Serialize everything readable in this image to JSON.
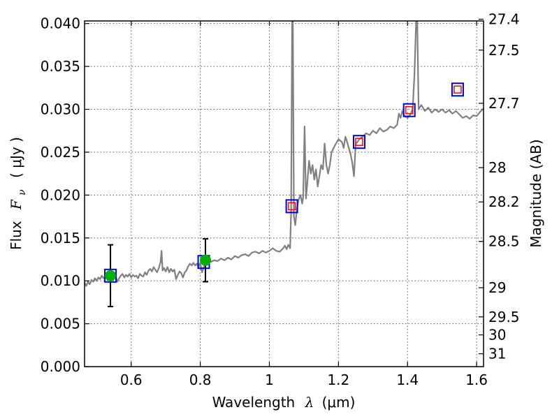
{
  "chart_data": {
    "type": "line",
    "title": "",
    "xlabel": "Wavelength",
    "xlabel_symbol": "λ",
    "xlabel_unit": "(μm)",
    "ylabel_left": "Flux",
    "ylabel_left_symbol": "F",
    "ylabel_left_symbol_sub": "ν",
    "ylabel_left_unit": "( μJy )",
    "ylabel_right": "Magnitude (AB)",
    "xlim": [
      0.465,
      1.62
    ],
    "ylim": [
      0.0,
      0.0403
    ],
    "grid": true,
    "x_ticks": [
      0.6,
      0.8,
      1.0,
      1.2,
      1.4,
      1.6
    ],
    "x_tick_labels": [
      "0.6",
      "0.8",
      "1",
      "1.2",
      "1.4",
      "1.6"
    ],
    "y_ticks": [
      0.0,
      0.005,
      0.01,
      0.015,
      0.02,
      0.025,
      0.03,
      0.035,
      0.04
    ],
    "y_tick_labels": [
      "0.000",
      "0.005",
      "0.010",
      "0.015",
      "0.020",
      "0.025",
      "0.030",
      "0.035",
      "0.040"
    ],
    "right_ticks": [
      {
        "flux": 0.0405,
        "label": "27.4"
      },
      {
        "flux": 0.0369,
        "label": "27.5"
      },
      {
        "flux": 0.0307,
        "label": "27.7"
      },
      {
        "flux": 0.0232,
        "label": "28"
      },
      {
        "flux": 0.0192,
        "label": "28.2"
      },
      {
        "flux": 0.0146,
        "label": "28.5"
      },
      {
        "flux": 0.0092,
        "label": "29"
      },
      {
        "flux": 0.0058,
        "label": "29.5"
      },
      {
        "flux": 0.0037,
        "label": "30"
      },
      {
        "flux": 0.0015,
        "label": "31"
      }
    ],
    "colors": {
      "spectrum": "#808080",
      "measured_point": "#00b000",
      "box_outer": "#0000dd",
      "box_inner": "#ee1111",
      "errorbar": "#000000",
      "grid": "#555555"
    },
    "series": [
      {
        "kind": "spectrum",
        "points": [
          [
            0.465,
            0.0098
          ],
          [
            0.47,
            0.0094
          ],
          [
            0.475,
            0.0099
          ],
          [
            0.48,
            0.0096
          ],
          [
            0.485,
            0.0101
          ],
          [
            0.49,
            0.0099
          ],
          [
            0.495,
            0.0103
          ],
          [
            0.5,
            0.01
          ],
          [
            0.505,
            0.0104
          ],
          [
            0.51,
            0.0102
          ],
          [
            0.515,
            0.0106
          ],
          [
            0.52,
            0.0103
          ],
          [
            0.525,
            0.0105
          ],
          [
            0.53,
            0.0107
          ],
          [
            0.535,
            0.0104
          ],
          [
            0.54,
            0.0102
          ],
          [
            0.545,
            0.0106
          ],
          [
            0.55,
            0.0108
          ],
          [
            0.555,
            0.0105
          ],
          [
            0.56,
            0.0099
          ],
          [
            0.565,
            0.0103
          ],
          [
            0.57,
            0.0106
          ],
          [
            0.575,
            0.0108
          ],
          [
            0.58,
            0.0104
          ],
          [
            0.585,
            0.0107
          ],
          [
            0.59,
            0.0105
          ],
          [
            0.595,
            0.0108
          ],
          [
            0.6,
            0.0104
          ],
          [
            0.605,
            0.0107
          ],
          [
            0.61,
            0.0105
          ],
          [
            0.615,
            0.0106
          ],
          [
            0.62,
            0.0103
          ],
          [
            0.625,
            0.0108
          ],
          [
            0.63,
            0.0106
          ],
          [
            0.635,
            0.0105
          ],
          [
            0.64,
            0.011
          ],
          [
            0.645,
            0.0107
          ],
          [
            0.65,
            0.0112
          ],
          [
            0.655,
            0.0114
          ],
          [
            0.66,
            0.0111
          ],
          [
            0.665,
            0.0116
          ],
          [
            0.67,
            0.0113
          ],
          [
            0.675,
            0.011
          ],
          [
            0.68,
            0.0115
          ],
          [
            0.685,
            0.0122
          ],
          [
            0.688,
            0.0135
          ],
          [
            0.691,
            0.0112
          ],
          [
            0.695,
            0.0115
          ],
          [
            0.7,
            0.0111
          ],
          [
            0.705,
            0.0116
          ],
          [
            0.71,
            0.011
          ],
          [
            0.715,
            0.0114
          ],
          [
            0.72,
            0.0111
          ],
          [
            0.725,
            0.0113
          ],
          [
            0.73,
            0.0102
          ],
          [
            0.735,
            0.0107
          ],
          [
            0.74,
            0.0111
          ],
          [
            0.745,
            0.0109
          ],
          [
            0.75,
            0.0104
          ],
          [
            0.755,
            0.011
          ],
          [
            0.76,
            0.0112
          ],
          [
            0.765,
            0.0117
          ],
          [
            0.77,
            0.012
          ],
          [
            0.775,
            0.0118
          ],
          [
            0.78,
            0.0121
          ],
          [
            0.785,
            0.0118
          ],
          [
            0.79,
            0.012
          ],
          [
            0.795,
            0.0116
          ],
          [
            0.8,
            0.0121
          ],
          [
            0.805,
            0.011
          ],
          [
            0.81,
            0.0116
          ],
          [
            0.815,
            0.012
          ],
          [
            0.82,
            0.0123
          ],
          [
            0.83,
            0.0122
          ],
          [
            0.84,
            0.0124
          ],
          [
            0.85,
            0.0123
          ],
          [
            0.86,
            0.0126
          ],
          [
            0.87,
            0.0124
          ],
          [
            0.88,
            0.0127
          ],
          [
            0.89,
            0.0125
          ],
          [
            0.9,
            0.0129
          ],
          [
            0.91,
            0.0127
          ],
          [
            0.92,
            0.013
          ],
          [
            0.93,
            0.0131
          ],
          [
            0.94,
            0.0129
          ],
          [
            0.95,
            0.0133
          ],
          [
            0.96,
            0.0134
          ],
          [
            0.97,
            0.0132
          ],
          [
            0.98,
            0.0135
          ],
          [
            0.99,
            0.0133
          ],
          [
            1.0,
            0.0135
          ],
          [
            1.01,
            0.0138
          ],
          [
            1.02,
            0.0135
          ],
          [
            1.03,
            0.0134
          ],
          [
            1.04,
            0.0138
          ],
          [
            1.045,
            0.0141
          ],
          [
            1.05,
            0.0137
          ],
          [
            1.055,
            0.0142
          ],
          [
            1.06,
            0.0138
          ],
          [
            1.063,
            0.018
          ],
          [
            1.066,
            0.0405
          ],
          [
            1.068,
            0.0405
          ],
          [
            1.071,
            0.0175
          ],
          [
            1.075,
            0.0165
          ],
          [
            1.08,
            0.0185
          ],
          [
            1.085,
            0.0195
          ],
          [
            1.09,
            0.02
          ],
          [
            1.095,
            0.019
          ],
          [
            1.098,
            0.0198
          ],
          [
            1.102,
            0.028
          ],
          [
            1.106,
            0.0196
          ],
          [
            1.11,
            0.0215
          ],
          [
            1.115,
            0.024
          ],
          [
            1.12,
            0.0225
          ],
          [
            1.125,
            0.0235
          ],
          [
            1.13,
            0.0218
          ],
          [
            1.135,
            0.023
          ],
          [
            1.14,
            0.021
          ],
          [
            1.15,
            0.0235
          ],
          [
            1.155,
            0.023
          ],
          [
            1.16,
            0.026
          ],
          [
            1.165,
            0.0235
          ],
          [
            1.17,
            0.0225
          ],
          [
            1.175,
            0.0235
          ],
          [
            1.18,
            0.025
          ],
          [
            1.19,
            0.0258
          ],
          [
            1.2,
            0.0265
          ],
          [
            1.21,
            0.0262
          ],
          [
            1.215,
            0.0255
          ],
          [
            1.22,
            0.0268
          ],
          [
            1.225,
            0.0262
          ],
          [
            1.23,
            0.0255
          ],
          [
            1.235,
            0.0248
          ],
          [
            1.24,
            0.0238
          ],
          [
            1.245,
            0.0222
          ],
          [
            1.25,
            0.026
          ],
          [
            1.255,
            0.0262
          ],
          [
            1.26,
            0.0265
          ],
          [
            1.27,
            0.0268
          ],
          [
            1.28,
            0.0272
          ],
          [
            1.29,
            0.027
          ],
          [
            1.3,
            0.0275
          ],
          [
            1.31,
            0.0272
          ],
          [
            1.32,
            0.0278
          ],
          [
            1.33,
            0.0274
          ],
          [
            1.34,
            0.0276
          ],
          [
            1.35,
            0.028
          ],
          [
            1.36,
            0.0278
          ],
          [
            1.37,
            0.0282
          ],
          [
            1.375,
            0.0295
          ],
          [
            1.38,
            0.029
          ],
          [
            1.385,
            0.0298
          ],
          [
            1.39,
            0.0293
          ],
          [
            1.4,
            0.029
          ],
          [
            1.41,
            0.0295
          ],
          [
            1.415,
            0.0302
          ],
          [
            1.42,
            0.034
          ],
          [
            1.425,
            0.0405
          ],
          [
            1.428,
            0.0405
          ],
          [
            1.432,
            0.03
          ],
          [
            1.44,
            0.0305
          ],
          [
            1.45,
            0.0298
          ],
          [
            1.46,
            0.0302
          ],
          [
            1.47,
            0.0296
          ],
          [
            1.48,
            0.03
          ],
          [
            1.49,
            0.0297
          ],
          [
            1.5,
            0.03
          ],
          [
            1.51,
            0.0296
          ],
          [
            1.52,
            0.0299
          ],
          [
            1.53,
            0.0295
          ],
          [
            1.54,
            0.0298
          ],
          [
            1.55,
            0.0294
          ],
          [
            1.56,
            0.029
          ],
          [
            1.57,
            0.0292
          ],
          [
            1.58,
            0.0289
          ],
          [
            1.59,
            0.0293
          ],
          [
            1.6,
            0.0292
          ],
          [
            1.61,
            0.0297
          ],
          [
            1.62,
            0.0301
          ]
        ]
      },
      {
        "kind": "measured",
        "points": [
          {
            "x": 0.54,
            "y": 0.0106,
            "yerr_low": 0.007,
            "yerr_high": 0.0142
          },
          {
            "x": 0.815,
            "y": 0.0124,
            "yerr_low": 0.0099,
            "yerr_high": 0.0149
          }
        ]
      },
      {
        "kind": "box",
        "points": [
          {
            "x": 0.54,
            "y": 0.0106
          },
          {
            "x": 0.81,
            "y": 0.0122
          },
          {
            "x": 1.065,
            "y": 0.0187
          },
          {
            "x": 1.26,
            "y": 0.0262
          },
          {
            "x": 1.405,
            "y": 0.0299
          },
          {
            "x": 1.545,
            "y": 0.0323
          }
        ]
      },
      {
        "kind": "box_inner",
        "points": [
          {
            "x": 1.065,
            "y": 0.0187
          },
          {
            "x": 1.26,
            "y": 0.0262
          },
          {
            "x": 1.405,
            "y": 0.0299
          },
          {
            "x": 1.545,
            "y": 0.0323
          }
        ]
      }
    ]
  }
}
